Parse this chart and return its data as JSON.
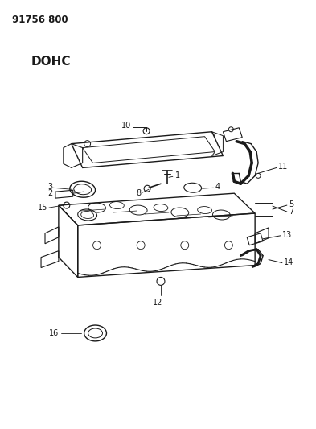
{
  "title_id": "91756 800",
  "subtitle": "DOHC",
  "bg": "#ffffff",
  "lc": "#1a1a1a",
  "fig_w": 3.93,
  "fig_h": 5.33,
  "dpi": 100
}
